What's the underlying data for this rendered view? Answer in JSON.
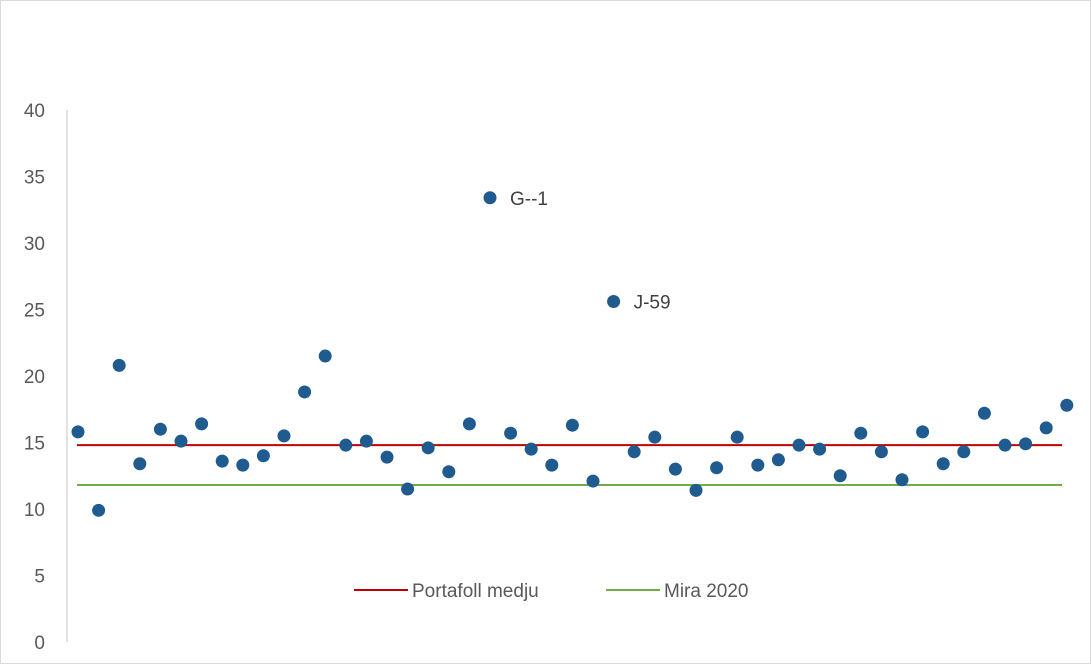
{
  "chart_data": {
    "type": "scatter",
    "ylim": [
      0,
      40
    ],
    "y_ticks": [
      0,
      5,
      10,
      15,
      20,
      25,
      30,
      35,
      40
    ],
    "x": [
      1,
      2,
      3,
      4,
      5,
      6,
      7,
      8,
      9,
      10,
      11,
      12,
      13,
      14,
      15,
      16,
      17,
      18,
      19,
      20,
      21,
      22,
      23,
      24,
      25,
      26,
      27,
      28,
      29,
      30,
      31,
      32,
      33,
      34,
      35,
      36,
      37,
      38,
      39,
      40,
      41,
      42,
      43,
      44,
      45,
      46,
      47,
      48,
      49
    ],
    "values": [
      15.8,
      9.9,
      20.8,
      13.4,
      16.0,
      15.1,
      16.4,
      13.6,
      13.3,
      14.0,
      15.5,
      18.8,
      21.5,
      14.8,
      15.1,
      13.9,
      11.5,
      14.6,
      12.8,
      16.4,
      33.4,
      15.7,
      14.5,
      13.3,
      16.3,
      12.1,
      25.6,
      14.3,
      15.4,
      13.0,
      11.4,
      13.1,
      15.4,
      13.3,
      13.7,
      14.8,
      14.5,
      12.5,
      15.7,
      14.3,
      12.2,
      15.8,
      13.4,
      14.3,
      17.2,
      14.8,
      14.9,
      16.1,
      17.8
    ],
    "point_color": "#1f5b8e",
    "annotations": [
      {
        "index": 20,
        "text": "G--1"
      },
      {
        "index": 26,
        "text": "J-59"
      }
    ],
    "reference_lines": [
      {
        "name": "Portafoll medju",
        "value": 14.8,
        "color": "#c00000"
      },
      {
        "name": "Mira 2020",
        "value": 11.8,
        "color": "#70ad47"
      }
    ],
    "legend_placement": "bottom-center",
    "grid": false
  }
}
